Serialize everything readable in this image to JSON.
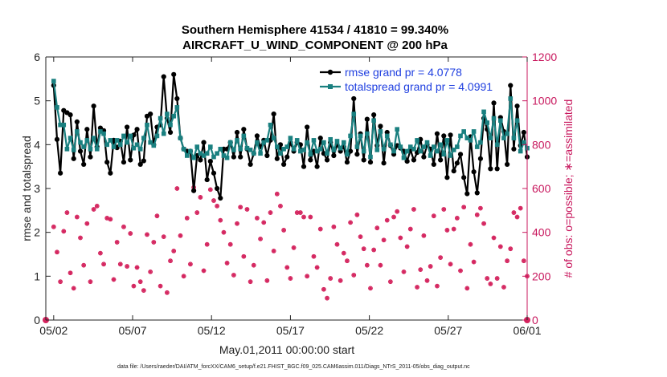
{
  "chart_data": {
    "type": "line",
    "title": "Southern Hemisphere 41534 / 41810 = 99.340%",
    "subtitle": "AIRCRAFT_U_WIND_COMPONENT @ 200 hPa",
    "xlabel": "May.01,2011 00:00:00 start",
    "ylabel": "rmse and totalspread",
    "y2label": "# of obs: o=possible; ∗=assimilated",
    "x_tick_labels": [
      "05/02",
      "05/07",
      "05/12",
      "05/17",
      "05/22",
      "05/27",
      "06/01"
    ],
    "x_tick_days": [
      1,
      6,
      11,
      16,
      21,
      26,
      31
    ],
    "xlim": [
      0.5,
      31
    ],
    "ylim": [
      0,
      6
    ],
    "y_ticks": [
      "0",
      "1",
      "2",
      "3",
      "4",
      "5",
      "6"
    ],
    "y2lim": [
      0,
      1200
    ],
    "y2_ticks": [
      "0",
      "200",
      "400",
      "600",
      "800",
      "1000",
      "1200"
    ],
    "legend": [
      "rmse grand pr = 4.0778",
      "totalspread grand pr = 4.0991"
    ],
    "legend_position": "top-right",
    "colors": {
      "rmse": "#000000",
      "totalspread": "#1a8080",
      "obs": "#d4245e"
    },
    "series": [
      {
        "name": "rmse",
        "values": [
          5.35,
          4.12,
          3.35,
          4.78,
          4.73,
          4.68,
          3.68,
          4.52,
          3.85,
          3.55,
          4.35,
          3.72,
          4.88,
          3.95,
          4.38,
          4.32,
          3.6,
          3.35,
          4.1,
          3.93,
          4.08,
          3.6,
          4.4,
          3.65,
          4.22,
          4.35,
          3.55,
          3.63,
          4.65,
          4.7,
          4.0,
          4.4,
          4.45,
          5.55,
          4.6,
          4.28,
          5.6,
          5.05,
          4.15,
          3.9,
          3.85,
          3.85,
          2.95,
          3.75,
          3.65,
          4.05,
          3.2,
          3.62,
          3.35,
          3.0,
          2.78,
          3.9,
          3.9,
          4.05,
          3.72,
          4.28,
          3.72,
          4.35,
          3.9,
          3.55,
          3.8,
          4.2,
          3.95,
          4.1,
          3.75,
          4.1,
          4.7,
          3.68,
          4.0,
          3.55,
          3.72,
          4.05,
          3.85,
          4.05,
          4.0,
          3.5,
          4.4,
          3.65,
          3.85,
          3.5,
          4.15,
          3.8,
          3.65,
          4.05,
          3.75,
          4.0,
          3.85,
          3.95,
          3.6,
          3.85,
          5.05,
          3.78,
          4.25,
          3.65,
          4.58,
          3.6,
          4.68,
          3.98,
          4.42,
          3.58,
          4.28,
          3.98,
          3.78,
          3.98,
          3.92,
          3.85,
          3.62,
          3.88,
          3.65,
          3.82,
          4.12,
          3.72,
          4.0,
          3.9,
          3.55,
          4.25,
          3.65,
          4.2,
          3.25,
          4.22,
          3.4,
          3.58,
          3.78,
          3.25,
          2.88,
          4.18,
          3.38,
          2.9,
          3.68,
          4.6,
          4.35,
          3.45,
          4.95,
          3.45,
          4.62,
          4.3,
          3.55,
          5.35,
          3.9,
          4.88,
          3.98,
          4.28,
          3.72
        ]
      },
      {
        "name": "totalspread",
        "values": [
          5.45,
          4.85,
          4.45,
          4.45,
          3.9,
          4.15,
          3.88,
          4.3,
          4.05,
          3.95,
          4.1,
          3.9,
          4.15,
          3.9,
          4.3,
          4.25,
          4.0,
          4.1,
          3.95,
          4.1,
          4.0,
          4.2,
          4.05,
          4.2,
          3.92,
          4.0,
          3.9,
          4.15,
          4.45,
          4.05,
          3.98,
          4.2,
          4.6,
          4.25,
          4.7,
          4.45,
          4.65,
          4.85,
          4.15,
          3.9,
          3.75,
          3.85,
          3.7,
          3.95,
          3.8,
          3.75,
          3.8,
          3.95,
          3.72,
          3.8,
          3.9,
          3.75,
          3.7,
          4.05,
          3.88,
          4.1,
          3.9,
          4.2,
          3.92,
          3.88,
          3.8,
          4.05,
          3.8,
          4.05,
          4.1,
          4.45,
          4.15,
          3.95,
          3.8,
          3.9,
          3.95,
          4.15,
          3.9,
          4.1,
          3.85,
          3.88,
          4.05,
          3.78,
          4.1,
          3.85,
          3.9,
          4.05,
          3.8,
          4.12,
          3.88,
          4.08,
          3.92,
          4.05,
          3.78,
          4.2,
          4.7,
          3.95,
          4.2,
          3.85,
          4.25,
          3.72,
          4.55,
          3.88,
          4.3,
          3.9,
          4.2,
          4.0,
          3.85,
          4.35,
          3.95,
          3.7,
          3.85,
          3.95,
          3.9,
          4.1,
          3.85,
          3.95,
          4.05,
          3.75,
          3.95,
          3.85,
          4.0,
          3.78,
          4.1,
          3.75,
          3.88,
          3.95,
          4.2,
          4.3,
          4.15,
          4.1,
          4.3,
          3.95,
          4.05,
          4.75,
          4.5,
          4.15,
          4.6,
          4.0,
          4.55,
          4.15,
          4.25,
          5.05,
          4.15,
          4.55,
          3.85,
          4.05,
          3.92
        ]
      },
      {
        "name": "obs_possible",
        "axis": "right",
        "values": [
          425,
          310,
          175,
          405,
          490,
          215,
          145,
          470,
          375,
          250,
          440,
          175,
          505,
          520,
          305,
          255,
          465,
          460,
          185,
          355,
          255,
          425,
          245,
          395,
          155,
          240,
          175,
          135,
          390,
          220,
          355,
          475,
          155,
          380,
          125,
          270,
          315,
          600,
          385,
          200,
          465,
          255,
          605,
          490,
          560,
          225,
          345,
          595,
          545,
          520,
          455,
          400,
          260,
          345,
          205,
          440,
          515,
          290,
          505,
          175,
          250,
          465,
          370,
          445,
          180,
          490,
          315,
          575,
          520,
          410,
          240,
          190,
          330,
          490,
          490,
          470,
          200,
          470,
          290,
          240,
          415,
          140,
          100,
          190,
          425,
          345,
          180,
          305,
          270,
          445,
          205,
          480,
          380,
          325,
          250,
          145,
          320,
          420,
          250,
          365,
          455,
          175,
          470,
          495,
          375,
          220,
          335,
          415,
          505,
          150,
          230,
          385,
          180,
          245,
          475,
          155,
          285,
          505,
          410,
          255,
          415,
          465,
          225,
          515,
          145,
          345,
          265,
          480,
          510,
          440,
          190,
          165,
          375,
          190,
          335,
          150,
          270,
          325,
          490,
          470,
          510,
          270,
          200
        ]
      }
    ]
  },
  "footer": "data file: /Users/raeder/DAI/ATM_forcXX/CAM6_setup/f.e21.FHIST_BGC.f09_025.CAM6assim.011/Diags_NTrS_2011-05/obs_diag_output.nc"
}
